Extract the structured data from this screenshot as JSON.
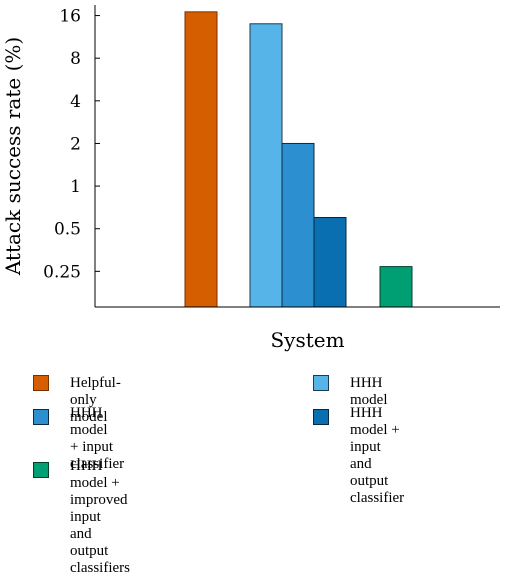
{
  "chart_data": {
    "type": "bar",
    "title": "",
    "xlabel": "System",
    "ylabel": "Attack success rate (%)",
    "yscale": "log2",
    "ylim": [
      0.14,
      19
    ],
    "yticks": [
      0.25,
      0.5,
      1,
      2,
      4,
      8,
      16
    ],
    "ytick_labels": [
      "0.25",
      "0.5",
      "1",
      "2",
      "4",
      "8",
      "16"
    ],
    "grid": false,
    "legend_position": "bottom",
    "series": [
      {
        "name": "Helpful-only model",
        "value": 17,
        "color": "#d55e00",
        "stroke": "#7a2f00"
      },
      {
        "name": "HHH model",
        "value": 14,
        "color": "#56b4e9",
        "stroke": "#1f3a4d"
      },
      {
        "name": "HHH model\n+ input classifier",
        "value": 2,
        "color": "#2b8fd0",
        "stroke": "#0f2a40"
      },
      {
        "name": "HHH model + input\nand output classifier",
        "value": 0.6,
        "color": "#0a6fb0",
        "stroke": "#062840"
      },
      {
        "name": "HHH model + improved input\nand output classifiers",
        "value": 0.27,
        "color": "#009e73",
        "stroke": "#003f2d"
      }
    ]
  }
}
